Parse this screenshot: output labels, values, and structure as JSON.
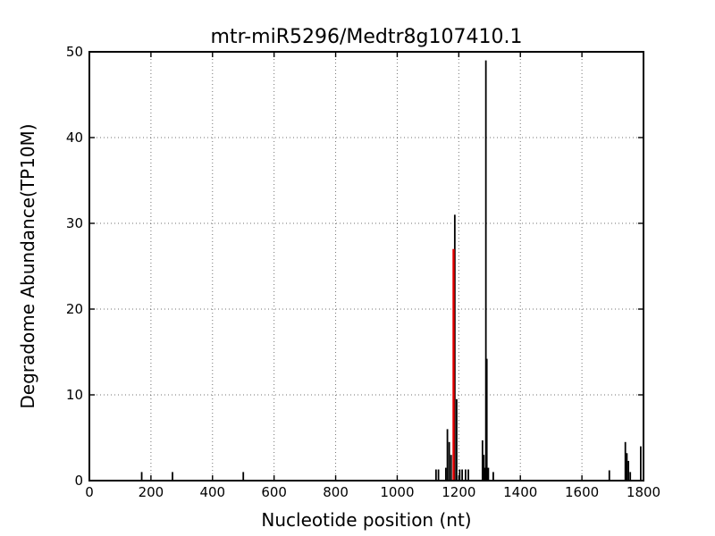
{
  "chart_data": {
    "type": "bar",
    "title": "mtr-miR5296/Medtr8g107410.1",
    "xlabel": "Nucleotide position (nt)",
    "ylabel": "Degradome Abundance(TP10M)",
    "xlim": [
      0,
      1800
    ],
    "ylim": [
      0,
      50
    ],
    "x_ticks": [
      0,
      200,
      400,
      600,
      800,
      1000,
      1200,
      1400,
      1600,
      1800
    ],
    "y_ticks": [
      0,
      10,
      20,
      30,
      40,
      50
    ],
    "grid": true,
    "grid_style": "dotted",
    "legend": "none",
    "colors": {
      "spike_default": "#000000",
      "spike_highlight": "#e60000",
      "frame": "#000000",
      "background": "#ffffff"
    },
    "series": [
      {
        "name": "degradome-abundance",
        "color": "#000000",
        "points": [
          [
            170,
            1.0
          ],
          [
            270,
            1.0
          ],
          [
            500,
            1.0
          ],
          [
            1126,
            1.3
          ],
          [
            1134,
            1.3
          ],
          [
            1158,
            1.5
          ],
          [
            1163,
            6.0
          ],
          [
            1169,
            4.5
          ],
          [
            1175,
            3.0
          ],
          [
            1187,
            31.0
          ],
          [
            1193,
            9.5
          ],
          [
            1203,
            1.3
          ],
          [
            1211,
            1.3
          ],
          [
            1222,
            1.3
          ],
          [
            1231,
            1.3
          ],
          [
            1277,
            4.7
          ],
          [
            1281,
            3.0
          ],
          [
            1284,
            1.5
          ],
          [
            1288,
            49.0
          ],
          [
            1291,
            14.2
          ],
          [
            1296,
            1.5
          ],
          [
            1312,
            1.0
          ],
          [
            1689,
            1.2
          ],
          [
            1741,
            4.5
          ],
          [
            1746,
            3.2
          ],
          [
            1751,
            2.3
          ],
          [
            1757,
            1.0
          ],
          [
            1791,
            4.0
          ]
        ]
      },
      {
        "name": "highlighted-cleavage-site",
        "color": "#e60000",
        "points": [
          [
            1183,
            27.0
          ]
        ]
      }
    ]
  }
}
